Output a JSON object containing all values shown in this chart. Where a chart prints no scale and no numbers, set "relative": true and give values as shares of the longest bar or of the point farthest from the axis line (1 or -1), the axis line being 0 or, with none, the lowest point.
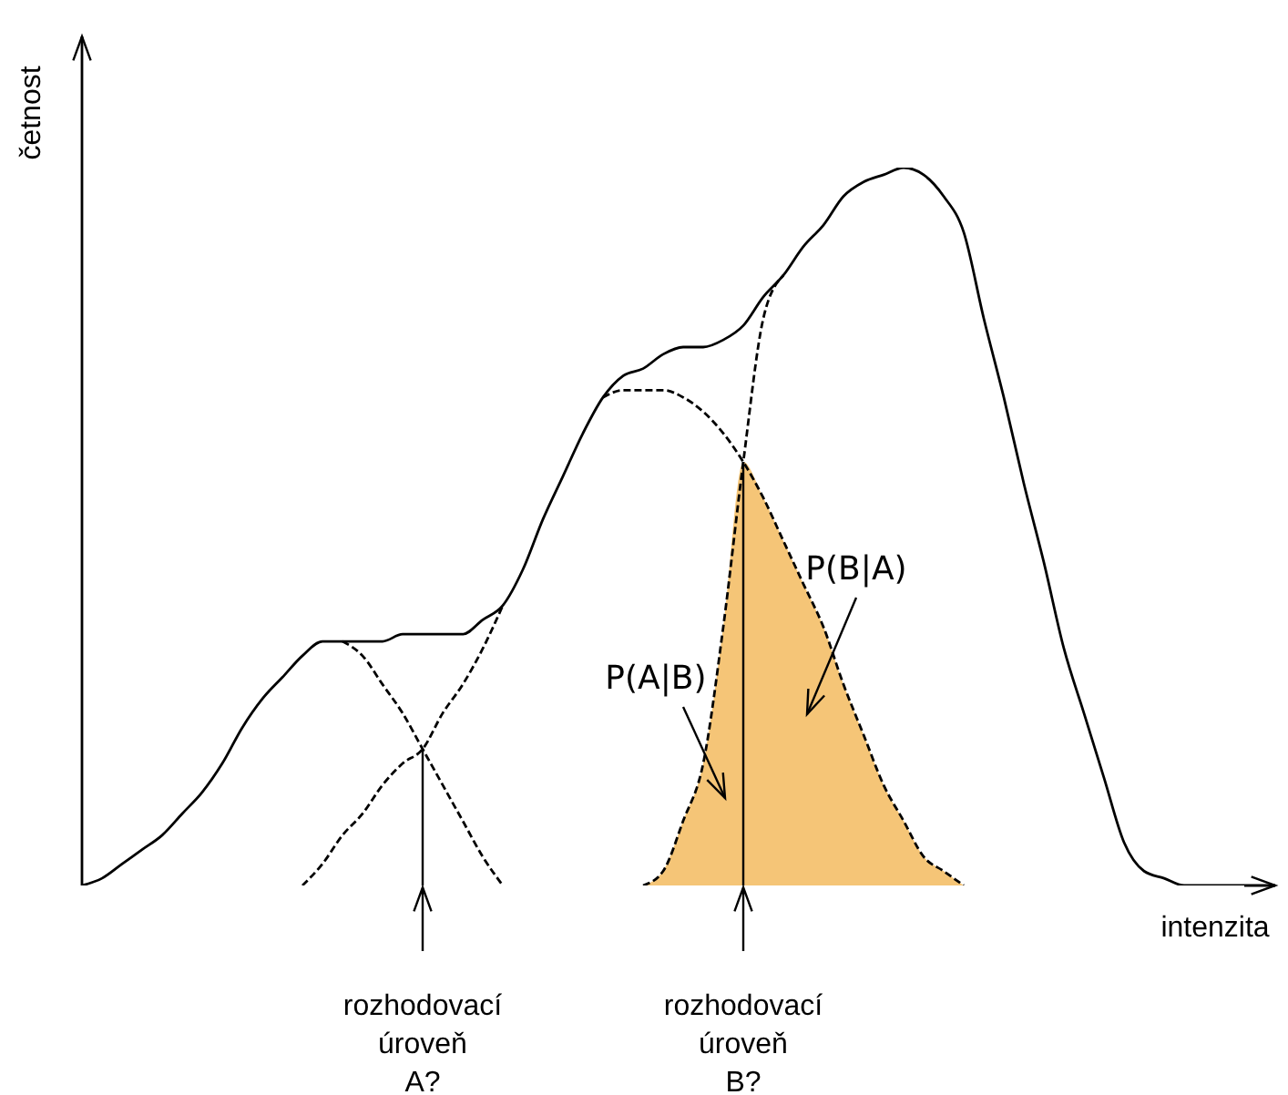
{
  "chart_data": {
    "type": "line",
    "relative": true,
    "xlabel": "intenzita",
    "ylabel": "četnost",
    "marker": "none",
    "categories": [
      null,
      null,
      null,
      null,
      null,
      null,
      null,
      null,
      null,
      null,
      null,
      null,
      null,
      null,
      null,
      null,
      null,
      null,
      null,
      null,
      null,
      null,
      null,
      null,
      null,
      null,
      null,
      null,
      null,
      null,
      null,
      null,
      null,
      null,
      null,
      null,
      null,
      null,
      null,
      null,
      null,
      null,
      null,
      null,
      null,
      null,
      null,
      null,
      null,
      null,
      null,
      null,
      null,
      null,
      null,
      null,
      null,
      null,
      null
    ],
    "series": [
      {
        "type": "area",
        "color": "#f5c577",
        "values": [
          null,
          null,
          null,
          null,
          null,
          null,
          null,
          null,
          null,
          null,
          null,
          null,
          null,
          null,
          null,
          null,
          null,
          null,
          null,
          null,
          null,
          null,
          null,
          null,
          null,
          null,
          null,
          null,
          0,
          0.02,
          0.09,
          0.17,
          0.36,
          0.59,
          0.54,
          0.48,
          0.42,
          0.36,
          0.28,
          0.21,
          0.14,
          0.09,
          0.04,
          0.02,
          0,
          null,
          null,
          null,
          null,
          null,
          null,
          null,
          null,
          null,
          null,
          null,
          null,
          null,
          null
        ]
      },
      {
        "line_style": "solid",
        "color": "#000000",
        "values": [
          0,
          0.01,
          0.03,
          0.05,
          0.07,
          0.1,
          0.13,
          0.17,
          0.22,
          0.26,
          0.29,
          0.32,
          0.34,
          0.34,
          0.34,
          0.34,
          0.35,
          0.35,
          0.35,
          0.35,
          0.37,
          0.39,
          0.44,
          0.51,
          0.57,
          0.63,
          0.68,
          0.71,
          0.72,
          0.74,
          0.75,
          0.75,
          0.76,
          0.78,
          0.82,
          0.85,
          0.89,
          0.92,
          0.96,
          0.98,
          0.99,
          1,
          0.99,
          0.96,
          0.91,
          0.79,
          0.68,
          0.56,
          0.45,
          0.33,
          0.24,
          0.15,
          0.06,
          0.02,
          0.01,
          0,
          0,
          0,
          0
        ]
      },
      {
        "type": "line",
        "line_style": "dashed",
        "color": "#000000",
        "values": [
          null,
          null,
          null,
          null,
          null,
          null,
          null,
          null,
          null,
          null,
          null,
          null,
          null,
          0.34,
          0.32,
          0.28,
          0.24,
          0.19,
          0.14,
          0.09,
          0.04,
          0,
          null,
          null,
          null,
          null,
          null,
          null,
          null,
          null,
          null,
          null,
          null,
          null,
          null,
          null,
          null,
          null,
          null,
          null,
          null,
          null,
          null,
          null,
          null,
          null,
          null,
          null,
          null,
          null,
          null,
          null,
          null,
          null,
          null,
          null,
          null,
          null,
          null
        ]
      },
      {
        "type": "line",
        "line_style": "dashed",
        "color": "#000000",
        "values": [
          null,
          null,
          null,
          null,
          null,
          null,
          null,
          null,
          null,
          null,
          null,
          0,
          0.03,
          0.07,
          0.1,
          0.14,
          0.17,
          0.19,
          0.24,
          0.28,
          0.33,
          0.39,
          null,
          null,
          null,
          null,
          0.68,
          0.69,
          0.69,
          0.69,
          0.68,
          0.66,
          0.63,
          0.59,
          0.54,
          0.48,
          0.42,
          0.36,
          0.28,
          0.21,
          0.14,
          0.09,
          0.04,
          0.02,
          0,
          null,
          null,
          null,
          null,
          null,
          null,
          null,
          null,
          null,
          null,
          null,
          null,
          null,
          null
        ]
      },
      {
        "type": "line",
        "line_style": "dashed",
        "color": "#000000",
        "values": [
          null,
          null,
          null,
          null,
          null,
          null,
          null,
          null,
          null,
          null,
          null,
          null,
          null,
          null,
          null,
          null,
          null,
          null,
          null,
          null,
          null,
          null,
          null,
          null,
          null,
          null,
          null,
          null,
          0,
          0.02,
          0.09,
          0.17,
          0.36,
          0.59,
          0.79,
          0.85,
          null,
          null,
          null,
          null,
          null,
          null,
          null,
          null,
          null,
          null,
          null,
          null,
          null,
          null,
          null,
          null,
          null,
          null,
          null,
          null,
          null,
          null,
          null
        ]
      }
    ],
    "annotations": [
      "P(A|B)",
      "P(B|A)",
      "rozhodovací úroveň A?",
      "rozhodovací úroveň B?"
    ]
  }
}
